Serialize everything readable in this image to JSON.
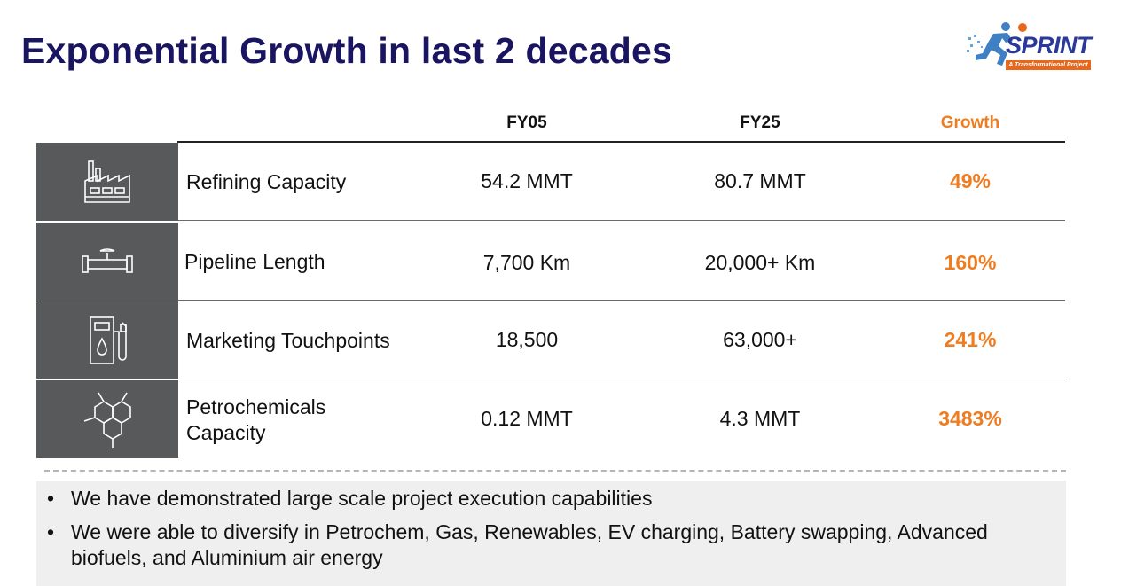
{
  "title": "Exponential Growth in last 2 decades",
  "logo": {
    "word": "SPRINT",
    "tagline": "A Transformational Project"
  },
  "table": {
    "headers": {
      "fy05": "FY05",
      "fy25": "FY25",
      "growth": "Growth"
    },
    "rows": [
      {
        "icon": "factory-icon",
        "label": "Refining Capacity",
        "fy05": "54.2 MMT",
        "fy25": "80.7 MMT",
        "growth": "49%"
      },
      {
        "icon": "pipeline-icon",
        "label": "Pipeline Length",
        "fy05": "7,700 Km",
        "fy25": "20,000+ Km",
        "growth": "160%"
      },
      {
        "icon": "fuel-pump-icon",
        "label": "Marketing Touchpoints",
        "fy05": "18,500",
        "fy25": "63,000+",
        "growth": "241%"
      },
      {
        "icon": "molecule-icon",
        "label_line1": "Petrochemicals",
        "label_line2": "Capacity",
        "fy05": "0.12 MMT",
        "fy25": "4.3 MMT",
        "growth": "3483%"
      }
    ]
  },
  "bullets": [
    "We have demonstrated large scale project execution capabilities",
    "We were able to diversify in Petrochem, Gas, Renewables, EV charging, Battery swapping, Advanced biofuels, and Aluminium air energy"
  ],
  "colors": {
    "title": "#1a1560",
    "accent": "#ee7d22",
    "icon_bg": "#58595b",
    "bullet_bg": "#efefef"
  }
}
